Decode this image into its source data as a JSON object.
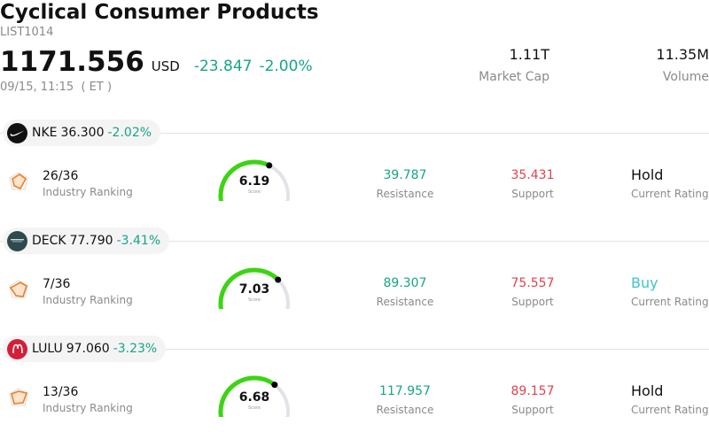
{
  "header": {
    "title": "Cyclical Consumer Products",
    "code": "LIST1014",
    "price": "1171.556",
    "currency": "USD",
    "change": "-23.847",
    "change_pct": "-2.00%",
    "time": "09/15, 11:15  ( ET )",
    "market_cap_value": "1.11T",
    "market_cap_label": "Market Cap",
    "volume_value": "11.35M",
    "volume_label": "Volume"
  },
  "colors": {
    "up_text": "#17a589",
    "down_text": "#e0434f",
    "gauge_fill": "#3dd413",
    "gauge_track": "#e2e2e8",
    "buy": "#3cc4cf"
  },
  "stocks": [
    {
      "ticker": "NKE",
      "price": "36.300",
      "change_pct": "-2.02%",
      "logo": "nike-swoosh-icon",
      "logo_color": "#111111",
      "rank": "26/36",
      "rank_label": "Industry Ranking",
      "score": "6.19",
      "score_value": 6.19,
      "score_label": "Score",
      "resistance": "39.787",
      "resistance_label": "Resistance",
      "support": "35.431",
      "support_label": "Support",
      "rating": "Hold",
      "rating_label": "Current Rating"
    },
    {
      "ticker": "DECK",
      "price": "77.790",
      "change_pct": "-3.41%",
      "logo": "deckers-logo-icon",
      "logo_color": "#2f4a4d",
      "rank": "7/36",
      "rank_label": "Industry Ranking",
      "score": "7.03",
      "score_value": 7.03,
      "score_label": "Score",
      "resistance": "89.307",
      "resistance_label": "Resistance",
      "support": "75.557",
      "support_label": "Support",
      "rating": "Buy",
      "rating_label": "Current Rating"
    },
    {
      "ticker": "LULU",
      "price": "97.060",
      "change_pct": "-3.23%",
      "logo": "lululemon-logo-icon",
      "logo_color": "#d31f39",
      "rank": "13/36",
      "rank_label": "Industry Ranking",
      "score": "6.68",
      "score_value": 6.68,
      "score_label": "Score",
      "resistance": "117.957",
      "resistance_label": "Resistance",
      "support": "89.157",
      "support_label": "Support",
      "rating": "Hold",
      "rating_label": "Current Rating"
    }
  ]
}
